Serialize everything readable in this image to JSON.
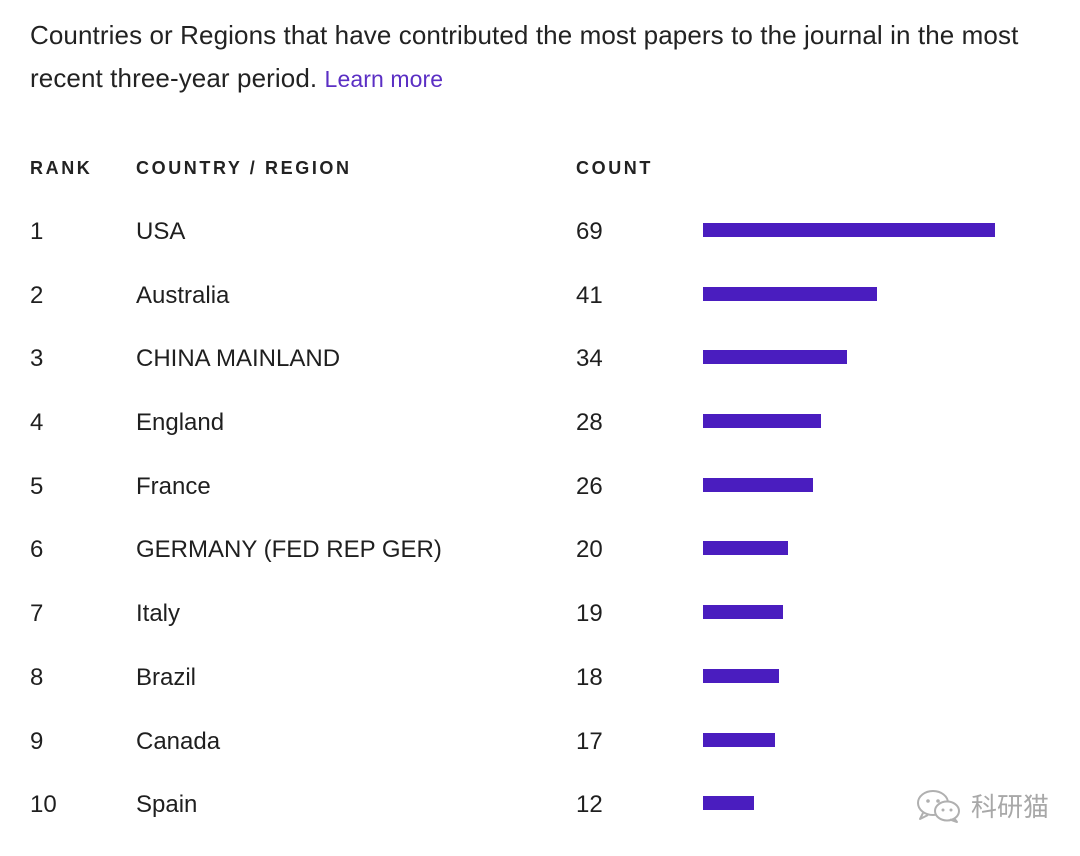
{
  "intro": {
    "text": "Countries or Regions that have contributed the most papers to the journal in the most recent three-year period.",
    "link_label": "Learn more"
  },
  "headers": {
    "rank": "RANK",
    "country": "COUNTRY / REGION",
    "count": "COUNT"
  },
  "colors": {
    "bar": "#4a1dbf",
    "link": "#5b2fc4"
  },
  "watermark": {
    "icon": "wechat-icon",
    "text": "科研猫"
  },
  "chart_data": {
    "type": "bar",
    "orientation": "horizontal",
    "categories": [
      "USA",
      "Australia",
      "CHINA MAINLAND",
      "England",
      "France",
      "GERMANY (FED REP GER)",
      "Italy",
      "Brazil",
      "Canada",
      "Spain"
    ],
    "ranks": [
      "1",
      "2",
      "3",
      "4",
      "5",
      "6",
      "7",
      "8",
      "9",
      "10"
    ],
    "values": [
      69,
      41,
      34,
      28,
      26,
      20,
      19,
      18,
      17,
      12
    ],
    "title": "",
    "xlabel": "",
    "ylabel": "",
    "xlim": [
      0,
      69
    ],
    "grid": false,
    "legend": "none"
  }
}
